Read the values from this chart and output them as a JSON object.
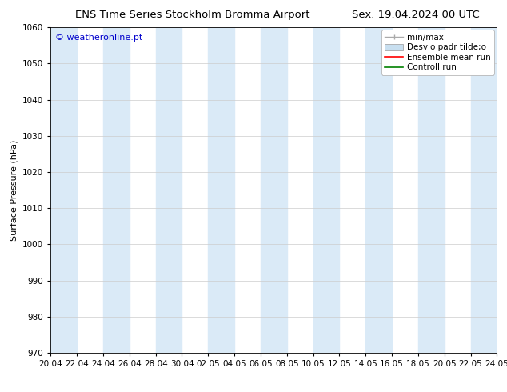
{
  "title_left": "ENS Time Series Stockholm Bromma Airport",
  "title_right": "Sex. 19.04.2024 00 UTC",
  "ylabel": "Surface Pressure (hPa)",
  "watermark": "© weatheronline.pt",
  "ylim": [
    970,
    1060
  ],
  "yticks": [
    970,
    980,
    990,
    1000,
    1010,
    1020,
    1030,
    1040,
    1050,
    1060
  ],
  "xtick_labels": [
    "20.04",
    "22.04",
    "24.04",
    "26.04",
    "28.04",
    "30.04",
    "02.05",
    "04.05",
    "06.05",
    "08.05",
    "10.05",
    "12.05",
    "14.05",
    "16.05",
    "18.05",
    "20.05",
    "22.05",
    "24.05"
  ],
  "bg_color": "#ffffff",
  "plot_bg_color": "#ffffff",
  "shaded_band_color": "#daeaf7",
  "shaded_columns": [
    0,
    2,
    4,
    6,
    8,
    10,
    12,
    14,
    16
  ],
  "legend_entries": [
    {
      "label": "min/max",
      "color": "#aaaaaa"
    },
    {
      "label": "Desvio padr tilde;o",
      "color": "#c8dff0"
    },
    {
      "label": "Ensemble mean run",
      "color": "#ff0000"
    },
    {
      "label": "Controll run",
      "color": "#008000"
    }
  ],
  "grid_color": "#cccccc",
  "title_fontsize": 9.5,
  "label_fontsize": 8,
  "tick_fontsize": 7.5,
  "legend_fontsize": 7.5,
  "watermark_color": "#0000cc",
  "watermark_fontsize": 8
}
